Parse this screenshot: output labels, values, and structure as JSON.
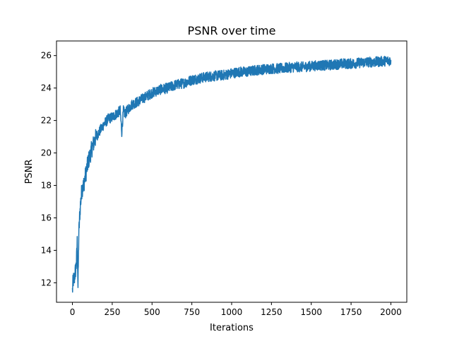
{
  "chart_data": {
    "type": "line",
    "title": "PSNR over time",
    "xlabel": "Iterations",
    "ylabel": "PSNR",
    "xlim": [
      -100,
      2100
    ],
    "ylim": [
      10.8,
      26.9
    ],
    "xticks": [
      0,
      250,
      500,
      750,
      1000,
      1250,
      1500,
      1750,
      2000
    ],
    "yticks": [
      12,
      14,
      16,
      18,
      20,
      22,
      24,
      26
    ],
    "grid": false,
    "series_color": "#1f77b4",
    "series": [
      {
        "x": [
          0,
          5,
          10,
          15,
          20,
          25,
          30,
          35,
          40,
          45,
          50,
          60,
          70,
          80,
          90,
          100,
          110,
          120,
          130,
          140,
          150,
          175,
          200,
          225,
          250,
          275,
          300,
          310,
          320,
          330,
          350,
          375,
          400,
          450,
          500,
          550,
          600,
          650,
          700,
          750,
          800,
          850,
          900,
          950,
          1000,
          1050,
          1100,
          1150,
          1200,
          1250,
          1300,
          1350,
          1400,
          1450,
          1500,
          1550,
          1600,
          1650,
          1700,
          1750,
          1800,
          1850,
          1900,
          1950,
          2000
        ],
        "y": [
          11.5,
          12.2,
          12.1,
          12.5,
          12.8,
          13.2,
          14.5,
          11.7,
          15.0,
          16.0,
          16.8,
          17.8,
          18.0,
          18.5,
          19.0,
          19.5,
          19.8,
          20.2,
          20.5,
          20.8,
          21.0,
          21.4,
          21.8,
          22.1,
          22.2,
          22.4,
          22.6,
          21.3,
          22.6,
          22.4,
          22.7,
          23.0,
          23.1,
          23.4,
          23.7,
          23.9,
          24.0,
          24.2,
          24.3,
          24.5,
          24.6,
          24.7,
          24.75,
          24.8,
          24.9,
          25.0,
          25.0,
          25.1,
          25.15,
          25.2,
          25.2,
          25.25,
          25.3,
          25.3,
          25.35,
          25.4,
          25.4,
          25.45,
          25.5,
          25.5,
          25.55,
          25.6,
          25.6,
          25.65,
          25.7
        ]
      }
    ]
  }
}
